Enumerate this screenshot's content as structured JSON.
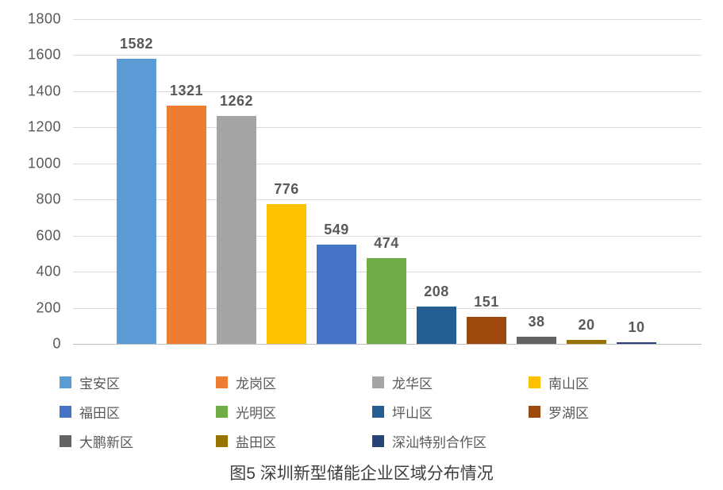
{
  "chart_data": {
    "type": "bar",
    "title": "图5 深圳新型储能企业区域分布情况",
    "categories": [
      "宝安区",
      "龙岗区",
      "龙华区",
      "南山区",
      "福田区",
      "光明区",
      "坪山区",
      "罗湖区",
      "大鹏新区",
      "盐田区",
      "深汕特别合作区"
    ],
    "values": [
      1582,
      1321,
      1262,
      776,
      549,
      474,
      208,
      151,
      38,
      20,
      10
    ],
    "colors": [
      "#5B9BD5",
      "#ED7D31",
      "#A5A5A5",
      "#FFC000",
      "#4472C4",
      "#70AD47",
      "#255E91",
      "#9E480E",
      "#636363",
      "#997300",
      "#264478"
    ],
    "xlabel": "",
    "ylabel": "",
    "ylim": [
      0,
      1800
    ],
    "yticks": [
      0,
      200,
      400,
      600,
      800,
      1000,
      1200,
      1400,
      1600,
      1800
    ],
    "grid": true,
    "data_labels": true,
    "legend_position": "bottom",
    "legend_rows": [
      [
        0,
        1,
        2,
        3
      ],
      [
        4,
        5,
        6,
        7
      ],
      [
        8,
        9,
        10
      ]
    ],
    "axis_label_color": "#595959",
    "data_label_color": "#595959",
    "gridline_color": "#D9D9D9"
  }
}
